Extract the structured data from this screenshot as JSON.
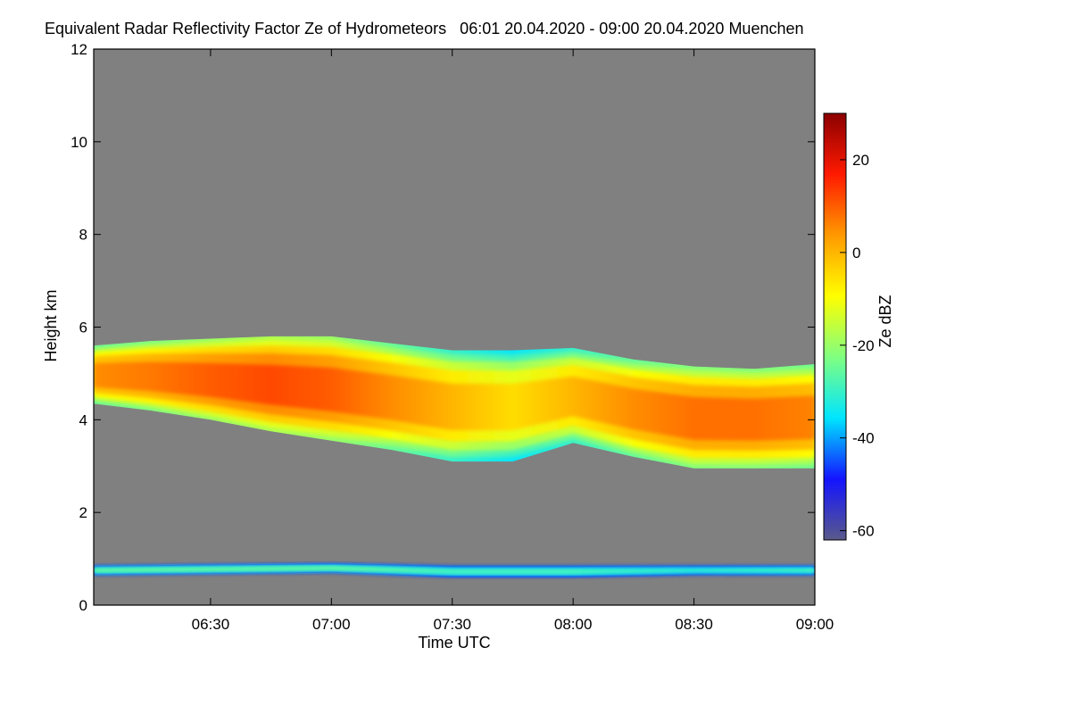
{
  "chart_data": {
    "type": "heatmap",
    "title": "Equivalent Radar Reflectivity Factor Ze of Hydrometeors   06:01 20.04.2020 - 09:00 20.04.2020 Muenchen",
    "xlabel": "Time UTC",
    "ylabel": "Height km",
    "colorbar_label": "Ze dBZ",
    "x_range": [
      "06:01",
      "09:00"
    ],
    "x_ticks": [
      "06:30",
      "07:00",
      "07:30",
      "08:00",
      "08:30",
      "09:00"
    ],
    "ylim": [
      0,
      12
    ],
    "y_ticks": [
      0,
      2,
      4,
      6,
      8,
      10,
      12
    ],
    "colorbar_range": [
      -62,
      30
    ],
    "colorbar_ticks": [
      20,
      0,
      -20,
      -40,
      -60
    ],
    "background_color": "#808080",
    "colormap": [
      "#5a5a8a",
      "#1414ff",
      "#00e5ff",
      "#80ff80",
      "#ffff00",
      "#ff9900",
      "#ff1a00",
      "#8b0000"
    ],
    "layers": [
      {
        "name": "upper cloud layer",
        "time_points": [
          "06:01",
          "06:15",
          "06:30",
          "06:45",
          "07:00",
          "07:15",
          "07:30",
          "07:45",
          "08:00",
          "08:15",
          "08:30",
          "08:45",
          "09:00"
        ],
        "top_km": [
          5.6,
          5.7,
          5.75,
          5.8,
          5.8,
          5.65,
          5.5,
          5.5,
          5.55,
          5.3,
          5.15,
          5.1,
          5.2
        ],
        "base_km": [
          4.35,
          4.2,
          4.0,
          3.75,
          3.55,
          3.35,
          3.1,
          3.1,
          3.5,
          3.2,
          2.95,
          2.95,
          2.95
        ],
        "core_dbz": [
          5,
          7,
          10,
          12,
          10,
          5,
          0,
          -5,
          0,
          5,
          8,
          8,
          6
        ]
      },
      {
        "name": "low-level layer",
        "time_points": [
          "06:01",
          "07:00",
          "07:30",
          "08:00",
          "08:30",
          "09:00"
        ],
        "top_km": [
          0.85,
          0.9,
          0.85,
          0.85,
          0.85,
          0.85
        ],
        "base_km": [
          0.65,
          0.7,
          0.6,
          0.6,
          0.65,
          0.65
        ],
        "core_dbz": [
          -25,
          -25,
          -28,
          -28,
          -30,
          -28
        ]
      }
    ]
  }
}
